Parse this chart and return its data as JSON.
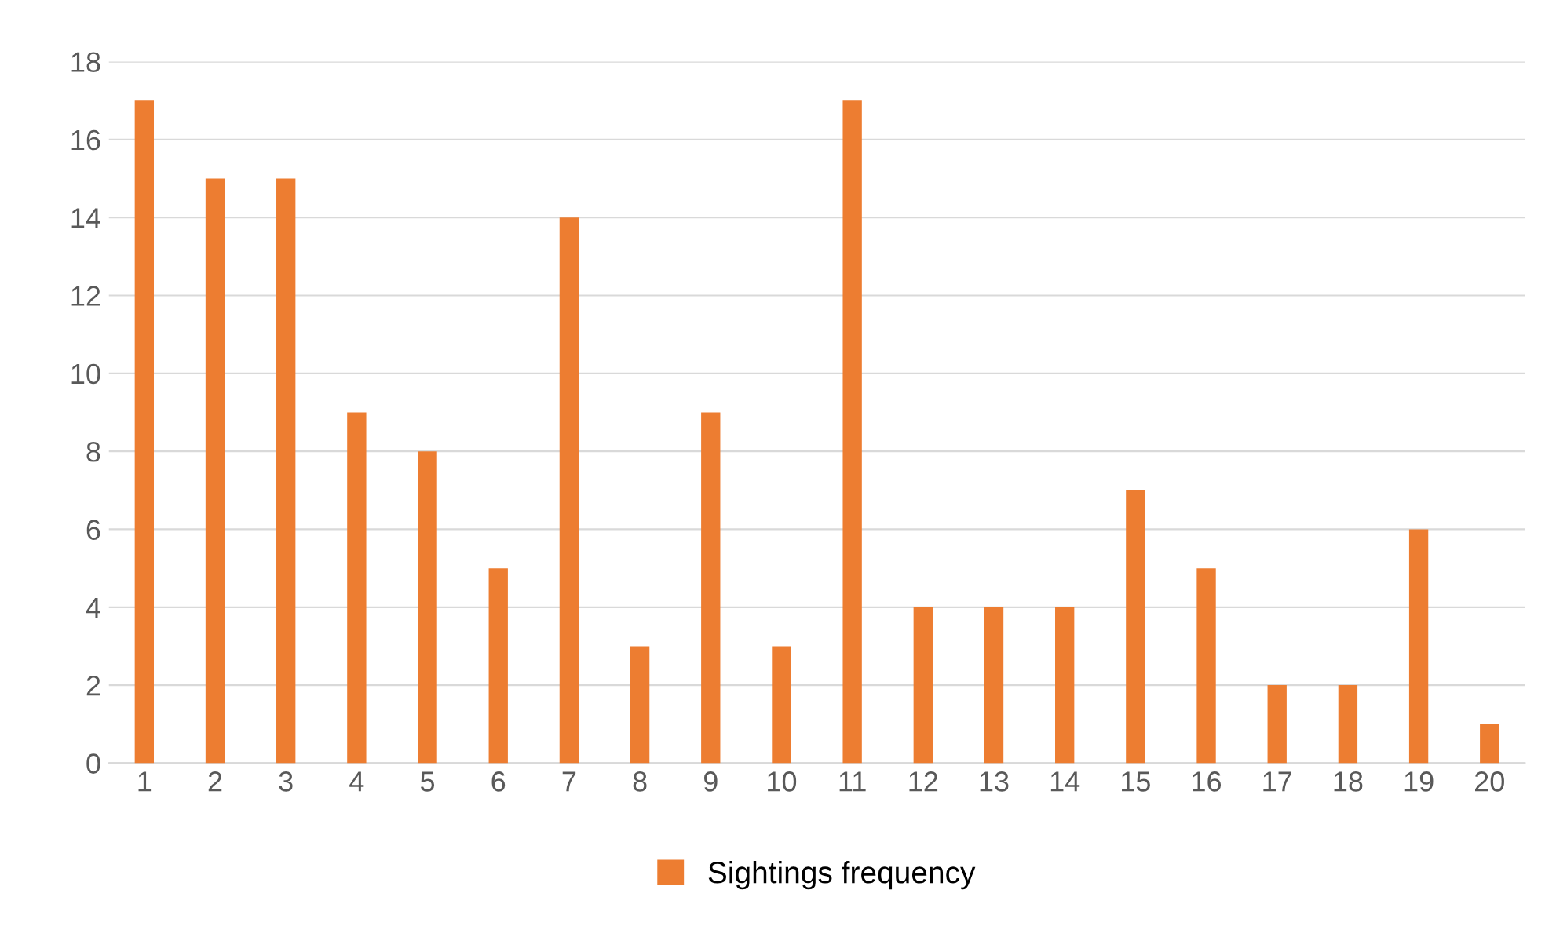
{
  "chart_data": {
    "type": "bar",
    "categories": [
      "1",
      "2",
      "3",
      "4",
      "5",
      "6",
      "7",
      "8",
      "9",
      "10",
      "11",
      "12",
      "13",
      "14",
      "15",
      "16",
      "17",
      "18",
      "19",
      "20"
    ],
    "series": [
      {
        "name": "Sightings frequency",
        "color": "#ed7d31",
        "values": [
          17,
          15,
          15,
          9,
          8,
          5,
          14,
          3,
          9,
          3,
          17,
          4,
          4,
          4,
          7,
          5,
          2,
          2,
          6,
          1
        ]
      }
    ],
    "ylim": [
      0,
      18
    ],
    "yticks": [
      0,
      2,
      4,
      6,
      8,
      10,
      12,
      14,
      16,
      18
    ],
    "grid": "y",
    "legend": "bottom"
  }
}
